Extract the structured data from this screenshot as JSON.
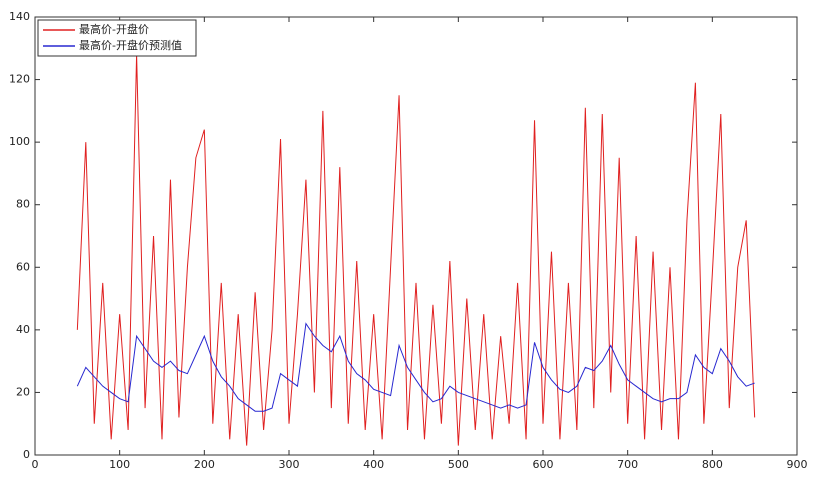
{
  "chart_data": {
    "type": "line",
    "x": [
      50,
      60,
      70,
      80,
      90,
      100,
      110,
      120,
      130,
      140,
      150,
      160,
      170,
      180,
      190,
      200,
      210,
      220,
      230,
      240,
      250,
      260,
      270,
      280,
      290,
      300,
      310,
      320,
      330,
      340,
      350,
      360,
      370,
      380,
      390,
      400,
      410,
      420,
      430,
      440,
      450,
      460,
      470,
      480,
      490,
      500,
      510,
      520,
      530,
      540,
      550,
      560,
      570,
      580,
      590,
      600,
      610,
      620,
      630,
      640,
      650,
      660,
      670,
      680,
      690,
      700,
      710,
      720,
      730,
      740,
      750,
      760,
      770,
      780,
      790,
      800,
      810,
      820,
      830,
      840,
      850
    ],
    "series": [
      {
        "name": "最高价-开盘价",
        "color": "#e02020",
        "values": [
          40,
          100,
          10,
          55,
          5,
          45,
          8,
          128,
          15,
          70,
          5,
          88,
          12,
          60,
          95,
          104,
          10,
          55,
          5,
          45,
          3,
          52,
          8,
          40,
          101,
          10,
          45,
          88,
          20,
          110,
          15,
          92,
          10,
          62,
          8,
          45,
          5,
          60,
          115,
          8,
          55,
          5,
          48,
          10,
          62,
          3,
          50,
          8,
          45,
          5,
          38,
          10,
          55,
          5,
          107,
          10,
          65,
          5,
          55,
          8,
          111,
          15,
          109,
          20,
          95,
          10,
          70,
          5,
          65,
          8,
          60,
          5,
          75,
          119,
          10,
          58,
          109,
          15,
          60,
          75,
          12
        ]
      },
      {
        "name": "最高价-开盘价预测值",
        "color": "#2828d0",
        "values": [
          22,
          28,
          25,
          22,
          20,
          18,
          17,
          38,
          34,
          30,
          28,
          30,
          27,
          26,
          32,
          38,
          30,
          25,
          22,
          18,
          16,
          14,
          14,
          15,
          26,
          24,
          22,
          42,
          38,
          35,
          33,
          38,
          30,
          26,
          24,
          21,
          20,
          19,
          35,
          28,
          24,
          20,
          17,
          18,
          22,
          20,
          19,
          18,
          17,
          16,
          15,
          16,
          15,
          16,
          36,
          28,
          24,
          21,
          20,
          22,
          28,
          27,
          30,
          35,
          29,
          24,
          22,
          20,
          18,
          17,
          18,
          18,
          20,
          32,
          28,
          26,
          34,
          30,
          25,
          22,
          23
        ]
      }
    ],
    "xlim": [
      0,
      900
    ],
    "xticks": [
      0,
      100,
      200,
      300,
      400,
      500,
      600,
      700,
      800,
      900
    ],
    "ylim": [
      0,
      140
    ],
    "yticks": [
      0,
      20,
      40,
      60,
      80,
      100,
      120,
      140
    ],
    "legend": "upper left"
  }
}
